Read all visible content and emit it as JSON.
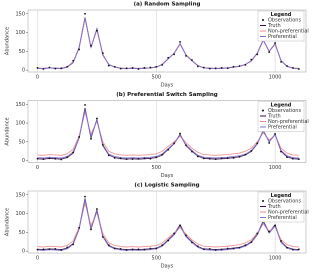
{
  "chart_data": [
    {
      "type": "line",
      "title": "(a) Random Sampling",
      "x_label": "Days",
      "y_label": "Abundance",
      "legend_title": "Legend",
      "legend": "top-right",
      "xgrid": true,
      "xlim": [
        -40,
        1130
      ],
      "ylim": [
        -5,
        160
      ],
      "xticks": [
        0,
        500,
        1000
      ],
      "yticks": [
        0,
        50,
        100,
        150
      ],
      "x": [
        0,
        25,
        50,
        75,
        100,
        125,
        150,
        175,
        200,
        225,
        250,
        275,
        300,
        325,
        350,
        375,
        400,
        425,
        450,
        475,
        500,
        525,
        550,
        575,
        600,
        625,
        650,
        675,
        700,
        725,
        750,
        775,
        800,
        825,
        850,
        875,
        900,
        925,
        950,
        975,
        1000,
        1025,
        1050,
        1075,
        1100
      ],
      "series": [
        {
          "name": "Observations",
          "mode": "markers",
          "color": "#111111",
          "values": [
            6,
            3,
            7,
            4,
            5,
            9,
            25,
            55,
            150,
            65,
            105,
            45,
            12,
            9,
            4,
            5,
            6,
            3,
            6,
            7,
            9,
            14,
            33,
            42,
            75,
            38,
            27,
            10,
            7,
            4,
            5,
            6,
            5,
            9,
            11,
            14,
            28,
            42,
            85,
            48,
            72,
            22,
            11,
            6,
            3
          ]
        },
        {
          "name": "Truth",
          "mode": "lines",
          "color": "#3a0d4a",
          "values": [
            5,
            4,
            6,
            5,
            4,
            8,
            20,
            60,
            140,
            60,
            110,
            40,
            15,
            8,
            5,
            4,
            5,
            4,
            5,
            6,
            8,
            15,
            30,
            45,
            70,
            40,
            25,
            12,
            6,
            5,
            4,
            5,
            6,
            8,
            10,
            15,
            25,
            45,
            80,
            50,
            70,
            25,
            10,
            5,
            4
          ]
        },
        {
          "name": "Non-preferential",
          "mode": "lines",
          "color": "#f08a8a",
          "values": [
            5,
            5,
            6,
            5,
            5,
            9,
            22,
            58,
            138,
            62,
            107,
            42,
            14,
            8,
            5,
            5,
            5,
            5,
            5,
            6,
            8,
            16,
            31,
            44,
            69,
            41,
            25,
            12,
            6,
            5,
            5,
            5,
            6,
            8,
            10,
            15,
            26,
            44,
            79,
            50,
            69,
            25,
            10,
            5,
            5
          ]
        },
        {
          "name": "Preferential",
          "mode": "lines",
          "color": "#7b6fd6",
          "values": [
            5,
            4,
            6,
            5,
            4,
            8,
            21,
            59,
            139,
            61,
            108,
            41,
            15,
            8,
            5,
            4,
            5,
            4,
            5,
            6,
            8,
            15,
            30,
            45,
            70,
            40,
            25,
            12,
            6,
            5,
            4,
            5,
            6,
            8,
            10,
            15,
            25,
            45,
            80,
            50,
            70,
            25,
            10,
            5,
            4
          ]
        }
      ]
    },
    {
      "type": "line",
      "title": "(b) Preferential Switch Sampling",
      "x_label": "Days",
      "y_label": "Abundance",
      "legend_title": "Legend",
      "legend": "top-right",
      "xgrid": true,
      "xlim": [
        -40,
        1130
      ],
      "ylim": [
        -5,
        160
      ],
      "xticks": [
        0,
        500,
        1000
      ],
      "yticks": [
        0,
        50,
        100,
        150
      ],
      "x": [
        0,
        25,
        50,
        75,
        100,
        125,
        150,
        175,
        200,
        225,
        250,
        275,
        300,
        325,
        350,
        375,
        400,
        425,
        450,
        475,
        500,
        525,
        550,
        575,
        600,
        625,
        650,
        675,
        700,
        725,
        750,
        775,
        800,
        825,
        850,
        875,
        900,
        925,
        950,
        975,
        1000,
        1025,
        1050,
        1075,
        1100
      ],
      "series": [
        {
          "name": "Observations",
          "mode": "markers",
          "color": "#111111",
          "values": [
            5,
            4,
            6,
            5,
            3,
            9,
            22,
            63,
            148,
            58,
            112,
            42,
            14,
            7,
            6,
            4,
            4,
            5,
            6,
            5,
            9,
            16,
            29,
            46,
            72,
            41,
            24,
            11,
            6,
            5,
            4,
            6,
            7,
            7,
            10,
            16,
            26,
            46,
            83,
            47,
            71,
            24,
            9,
            5,
            4
          ]
        },
        {
          "name": "Truth",
          "mode": "lines",
          "color": "#3a0d4a",
          "values": [
            5,
            4,
            6,
            5,
            4,
            8,
            20,
            60,
            140,
            60,
            110,
            40,
            15,
            8,
            5,
            4,
            5,
            4,
            5,
            6,
            8,
            15,
            30,
            45,
            70,
            40,
            25,
            12,
            6,
            5,
            4,
            5,
            6,
            8,
            10,
            15,
            25,
            45,
            80,
            50,
            70,
            25,
            10,
            5,
            4
          ]
        },
        {
          "name": "Non-preferential",
          "mode": "lines",
          "color": "#f08a8a",
          "values": [
            15,
            14,
            16,
            15,
            14,
            18,
            30,
            65,
            130,
            70,
            105,
            50,
            25,
            18,
            15,
            14,
            15,
            14,
            15,
            16,
            18,
            25,
            38,
            50,
            65,
            48,
            33,
            22,
            16,
            15,
            14,
            15,
            16,
            18,
            20,
            25,
            33,
            50,
            75,
            55,
            68,
            33,
            20,
            15,
            14
          ]
        },
        {
          "name": "Preferential",
          "mode": "lines",
          "color": "#7b6fd6",
          "values": [
            8,
            7,
            9,
            8,
            7,
            11,
            23,
            60,
            135,
            64,
            107,
            43,
            17,
            11,
            8,
            7,
            8,
            7,
            8,
            9,
            11,
            18,
            32,
            46,
            68,
            42,
            27,
            14,
            9,
            8,
            7,
            8,
            9,
            11,
            13,
            17,
            27,
            46,
            78,
            51,
            69,
            27,
            13,
            8,
            7
          ]
        }
      ]
    },
    {
      "type": "line",
      "title": "(c) Logistic Sampling",
      "x_label": "Days",
      "y_label": "Abundance",
      "legend_title": "Legend",
      "legend": "top-right",
      "xgrid": true,
      "xlim": [
        -40,
        1130
      ],
      "ylim": [
        -5,
        160
      ],
      "xticks": [
        0,
        500,
        1000
      ],
      "yticks": [
        0,
        50,
        100,
        150
      ],
      "x": [
        0,
        25,
        50,
        75,
        100,
        125,
        150,
        175,
        200,
        225,
        250,
        275,
        300,
        325,
        350,
        375,
        400,
        425,
        450,
        475,
        500,
        525,
        550,
        575,
        600,
        625,
        650,
        675,
        700,
        725,
        750,
        775,
        800,
        825,
        850,
        875,
        900,
        925,
        950,
        975,
        1000,
        1025,
        1050,
        1075,
        1100
      ],
      "series": [
        {
          "name": "Observations",
          "mode": "markers",
          "color": "#111111",
          "values": [
            4,
            5,
            5,
            6,
            3,
            10,
            18,
            62,
            145,
            58,
            112,
            38,
            16,
            7,
            6,
            3,
            4,
            5,
            4,
            7,
            7,
            16,
            28,
            47,
            68,
            42,
            23,
            13,
            5,
            6,
            3,
            4,
            7,
            7,
            9,
            16,
            24,
            47,
            78,
            52,
            68,
            27,
            9,
            4,
            5
          ]
        },
        {
          "name": "Truth",
          "mode": "lines",
          "color": "#3a0d4a",
          "values": [
            5,
            4,
            6,
            5,
            4,
            8,
            20,
            60,
            140,
            60,
            110,
            40,
            15,
            8,
            5,
            4,
            5,
            4,
            5,
            6,
            8,
            15,
            30,
            45,
            70,
            40,
            25,
            12,
            6,
            5,
            4,
            5,
            6,
            8,
            10,
            15,
            25,
            45,
            80,
            50,
            70,
            25,
            10,
            5,
            4
          ]
        },
        {
          "name": "Non-preferential",
          "mode": "lines",
          "color": "#f08a8a",
          "values": [
            12,
            11,
            13,
            12,
            11,
            15,
            27,
            63,
            128,
            68,
            103,
            47,
            22,
            15,
            12,
            11,
            12,
            11,
            12,
            13,
            15,
            22,
            35,
            48,
            63,
            45,
            30,
            19,
            13,
            12,
            11,
            12,
            13,
            15,
            17,
            22,
            30,
            48,
            73,
            53,
            66,
            30,
            17,
            12,
            11
          ]
        },
        {
          "name": "Preferential",
          "mode": "lines",
          "color": "#7b6fd6",
          "values": [
            3,
            2,
            4,
            3,
            2,
            6,
            18,
            58,
            137,
            58,
            106,
            38,
            13,
            6,
            3,
            2,
            3,
            2,
            3,
            4,
            6,
            13,
            28,
            43,
            67,
            38,
            23,
            10,
            4,
            3,
            2,
            3,
            4,
            6,
            8,
            13,
            23,
            43,
            77,
            48,
            67,
            23,
            8,
            3,
            2
          ]
        }
      ]
    }
  ]
}
